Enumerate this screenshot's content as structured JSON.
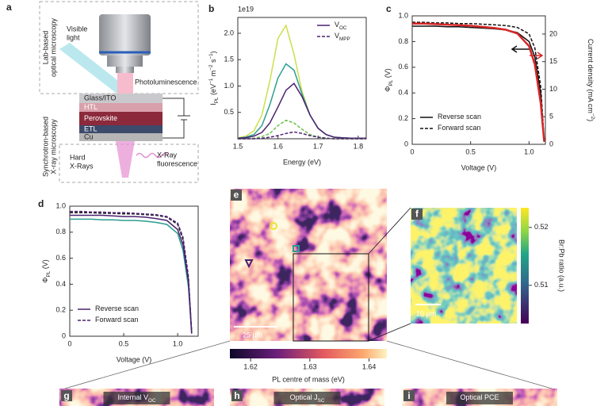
{
  "diagram": {
    "label": "a",
    "lab_box": [
      "Lab-based",
      "optical microscopy"
    ],
    "visible_light": [
      "Visible",
      "light"
    ],
    "photoluminescence": "Photoluminescence",
    "layers": [
      "Glass/ITO",
      "HTL",
      "Perovskite",
      "ETL",
      "Cu"
    ],
    "synchrotron_box": [
      "Synchrotron-based",
      "X-ray microscopy"
    ],
    "hard_xrays": [
      "Hard",
      "X-Rays"
    ],
    "fluorescence": [
      "X-Ray",
      "fluorescence"
    ]
  },
  "chart_data": [
    {
      "type": "line",
      "label": "b",
      "multiplier": "1e19",
      "xlabel": "Energy (eV)",
      "ylabel": [
        {
          "text": "I"
        },
        {
          "text": "PL",
          "shift": "sub"
        },
        {
          "text": " (eV"
        },
        {
          "text": "−1",
          "shift": "sup"
        },
        {
          "text": " m"
        },
        {
          "text": "−2",
          "shift": "sup"
        },
        {
          "text": " s"
        },
        {
          "text": "−1",
          "shift": "sup"
        },
        {
          "text": ")"
        }
      ],
      "x": [
        1.5,
        1.52,
        1.54,
        1.56,
        1.58,
        1.6,
        1.62,
        1.64,
        1.66,
        1.68,
        1.7,
        1.72,
        1.74,
        1.76,
        1.78,
        1.8,
        1.82
      ],
      "xlim": [
        1.5,
        1.82
      ],
      "xticks": [
        1.5,
        1.6,
        1.7,
        1.8
      ],
      "ylim": [
        0,
        2.3
      ],
      "yticks": [
        0.5,
        {
          "value": 1,
          "label": "1.0"
        },
        1.5,
        {
          "value": 2,
          "label": "2.0"
        }
      ],
      "legend": "upper right",
      "series": [
        {
          "color": "#cddf4a",
          "values": [
            0.02,
            0.05,
            0.15,
            0.45,
            1.1,
            1.9,
            2.15,
            1.6,
            0.9,
            0.45,
            0.2,
            0.08,
            0.03,
            0.02,
            0.01,
            0.01,
            0.01
          ]
        },
        {
          "color": "#2f9e92",
          "values": [
            0.01,
            0.03,
            0.08,
            0.25,
            0.65,
            1.15,
            1.42,
            1.3,
            0.85,
            0.45,
            0.2,
            0.08,
            0.03,
            0.02,
            0.01,
            0.01,
            0.01
          ]
        },
        {
          "name": [
            {
              "text": "V"
            },
            {
              "text": "OC",
              "shift": "sub"
            }
          ],
          "color": "#4b2170",
          "values": [
            0.01,
            0.02,
            0.05,
            0.12,
            0.3,
            0.6,
            0.92,
            1.05,
            0.8,
            0.45,
            0.2,
            0.08,
            0.03,
            0.02,
            0.01,
            0.01,
            0.01
          ]
        },
        {
          "color": "#6cbf4c",
          "dash": true,
          "values": [
            0,
            0,
            0.01,
            0.04,
            0.1,
            0.25,
            0.35,
            0.3,
            0.18,
            0.08,
            0.03,
            0.01,
            0,
            0,
            0,
            0,
            0
          ]
        },
        {
          "name": [
            {
              "text": "V"
            },
            {
              "text": "MPP",
              "shift": "sub"
            }
          ],
          "color": "#4b2170",
          "dash": true,
          "values": [
            0,
            0,
            0,
            0.01,
            0.03,
            0.06,
            0.1,
            0.13,
            0.1,
            0.06,
            0.03,
            0.01,
            0,
            0,
            0,
            0,
            0
          ]
        }
      ]
    },
    {
      "type": "line",
      "label": "c",
      "xlabel": "Voltage (V)",
      "ylabel": [
        {
          "text": "Φ"
        },
        {
          "text": "PL",
          "shift": "sub"
        },
        {
          "text": " (V)"
        }
      ],
      "y2label": [
        {
          "text": "Current density (mA cm"
        },
        {
          "text": "−2",
          "shift": "sup"
        },
        {
          "text": ")"
        }
      ],
      "y2color": "#d62728",
      "x": [
        0,
        0.1,
        0.2,
        0.3,
        0.4,
        0.5,
        0.6,
        0.7,
        0.8,
        0.9,
        1.0,
        1.05,
        1.1,
        1.13
      ],
      "xlim": [
        0,
        1.14
      ],
      "xticks": [
        0,
        0.5,
        {
          "value": 1,
          "label": "1.0"
        }
      ],
      "ylim": [
        0,
        1
      ],
      "yticks": [
        0,
        0.2,
        0.4,
        0.6,
        0.8,
        {
          "value": 1,
          "label": "1.0"
        }
      ],
      "y2lim": [
        0,
        23.3
      ],
      "y2ticks": [
        0,
        5,
        10,
        15,
        20
      ],
      "legend": "lower left",
      "series": [
        {
          "name": [
            {
              "text": "Reverse scan"
            }
          ],
          "color": "#111111",
          "values": [
            0.92,
            0.92,
            0.92,
            0.915,
            0.915,
            0.91,
            0.905,
            0.9,
            0.89,
            0.87,
            0.8,
            0.68,
            0.4,
            0.02
          ]
        },
        {
          "name": [
            {
              "text": "Forward scan"
            }
          ],
          "color": "#111111",
          "dash": true,
          "values": [
            0.95,
            0.95,
            0.945,
            0.945,
            0.94,
            0.94,
            0.935,
            0.93,
            0.925,
            0.91,
            0.86,
            0.75,
            0.45,
            0.03
          ]
        },
        {
          "color": "#d62728",
          "axis": "y2",
          "values": [
            21.9,
            21.9,
            21.8,
            21.7,
            21.6,
            21.5,
            21.3,
            21.1,
            20.8,
            20.1,
            17.8,
            14.5,
            7.5,
            0.5
          ]
        }
      ]
    },
    {
      "type": "line",
      "label": "d",
      "xlabel": "Voltage (V)",
      "ylabel": [
        {
          "text": "Φ"
        },
        {
          "text": "PL",
          "shift": "sub"
        },
        {
          "text": " (V)"
        }
      ],
      "x": [
        0,
        0.1,
        0.2,
        0.3,
        0.4,
        0.5,
        0.6,
        0.7,
        0.8,
        0.9,
        1.0,
        1.05,
        1.1,
        1.13
      ],
      "xlim": [
        0,
        1.19
      ],
      "xticks": [
        0,
        0.5,
        {
          "value": 1,
          "label": "1.0"
        }
      ],
      "ylim": [
        0,
        1
      ],
      "yticks": [
        0,
        0.2,
        0.4,
        0.6,
        0.8,
        {
          "value": 1,
          "label": "1.0"
        }
      ],
      "legend": "lower left",
      "series": [
        {
          "color": "#222222",
          "dash": true,
          "values": [
            0.95,
            0.95,
            0.95,
            0.945,
            0.945,
            0.94,
            0.94,
            0.935,
            0.93,
            0.915,
            0.86,
            0.74,
            0.44,
            0.03
          ]
        },
        {
          "color": "#2a9d8f",
          "values": [
            0.9,
            0.9,
            0.9,
            0.895,
            0.895,
            0.89,
            0.89,
            0.885,
            0.875,
            0.86,
            0.79,
            0.66,
            0.38,
            0.02
          ]
        },
        {
          "name": [
            {
              "text": "Reverse scan"
            }
          ],
          "color": "#4b2170",
          "values": [
            0.93,
            0.93,
            0.93,
            0.93,
            0.925,
            0.92,
            0.92,
            0.915,
            0.905,
            0.89,
            0.82,
            0.7,
            0.42,
            0.02
          ]
        },
        {
          "name": [
            {
              "text": "Forward scan"
            }
          ],
          "color": "#4b2170",
          "dash": true,
          "values": [
            0.96,
            0.96,
            0.955,
            0.955,
            0.95,
            0.95,
            0.945,
            0.94,
            0.935,
            0.92,
            0.87,
            0.76,
            0.46,
            0.03
          ]
        }
      ]
    }
  ],
  "maps": {
    "e": {
      "label": "e",
      "scalebar": "25 µm",
      "colorbar": {
        "label": "PL centre of mass (eV)",
        "lim": [
          1.6165,
          1.643
        ],
        "ticks": [
          1.62,
          1.63,
          1.64
        ]
      }
    },
    "f": {
      "label": "f",
      "scalebar": "10 µm",
      "colorbar": {
        "label": "Br:Pb ratio (a.u.)",
        "lim": [
          0.5034,
          0.5234
        ],
        "ticks": [
          0.51,
          0.52
        ]
      }
    },
    "g": {
      "label": "g",
      "title": [
        {
          "text": "Internal "
        },
        {
          "text": "V"
        },
        {
          "text": "OC",
          "shift": "sub"
        }
      ]
    },
    "h": {
      "label": "h",
      "title": [
        {
          "text": "Optical "
        },
        {
          "text": "J"
        },
        {
          "text": "SC",
          "shift": "sub"
        }
      ]
    },
    "i": {
      "label": "i",
      "title": [
        {
          "text": "Optical PCE"
        }
      ]
    }
  }
}
